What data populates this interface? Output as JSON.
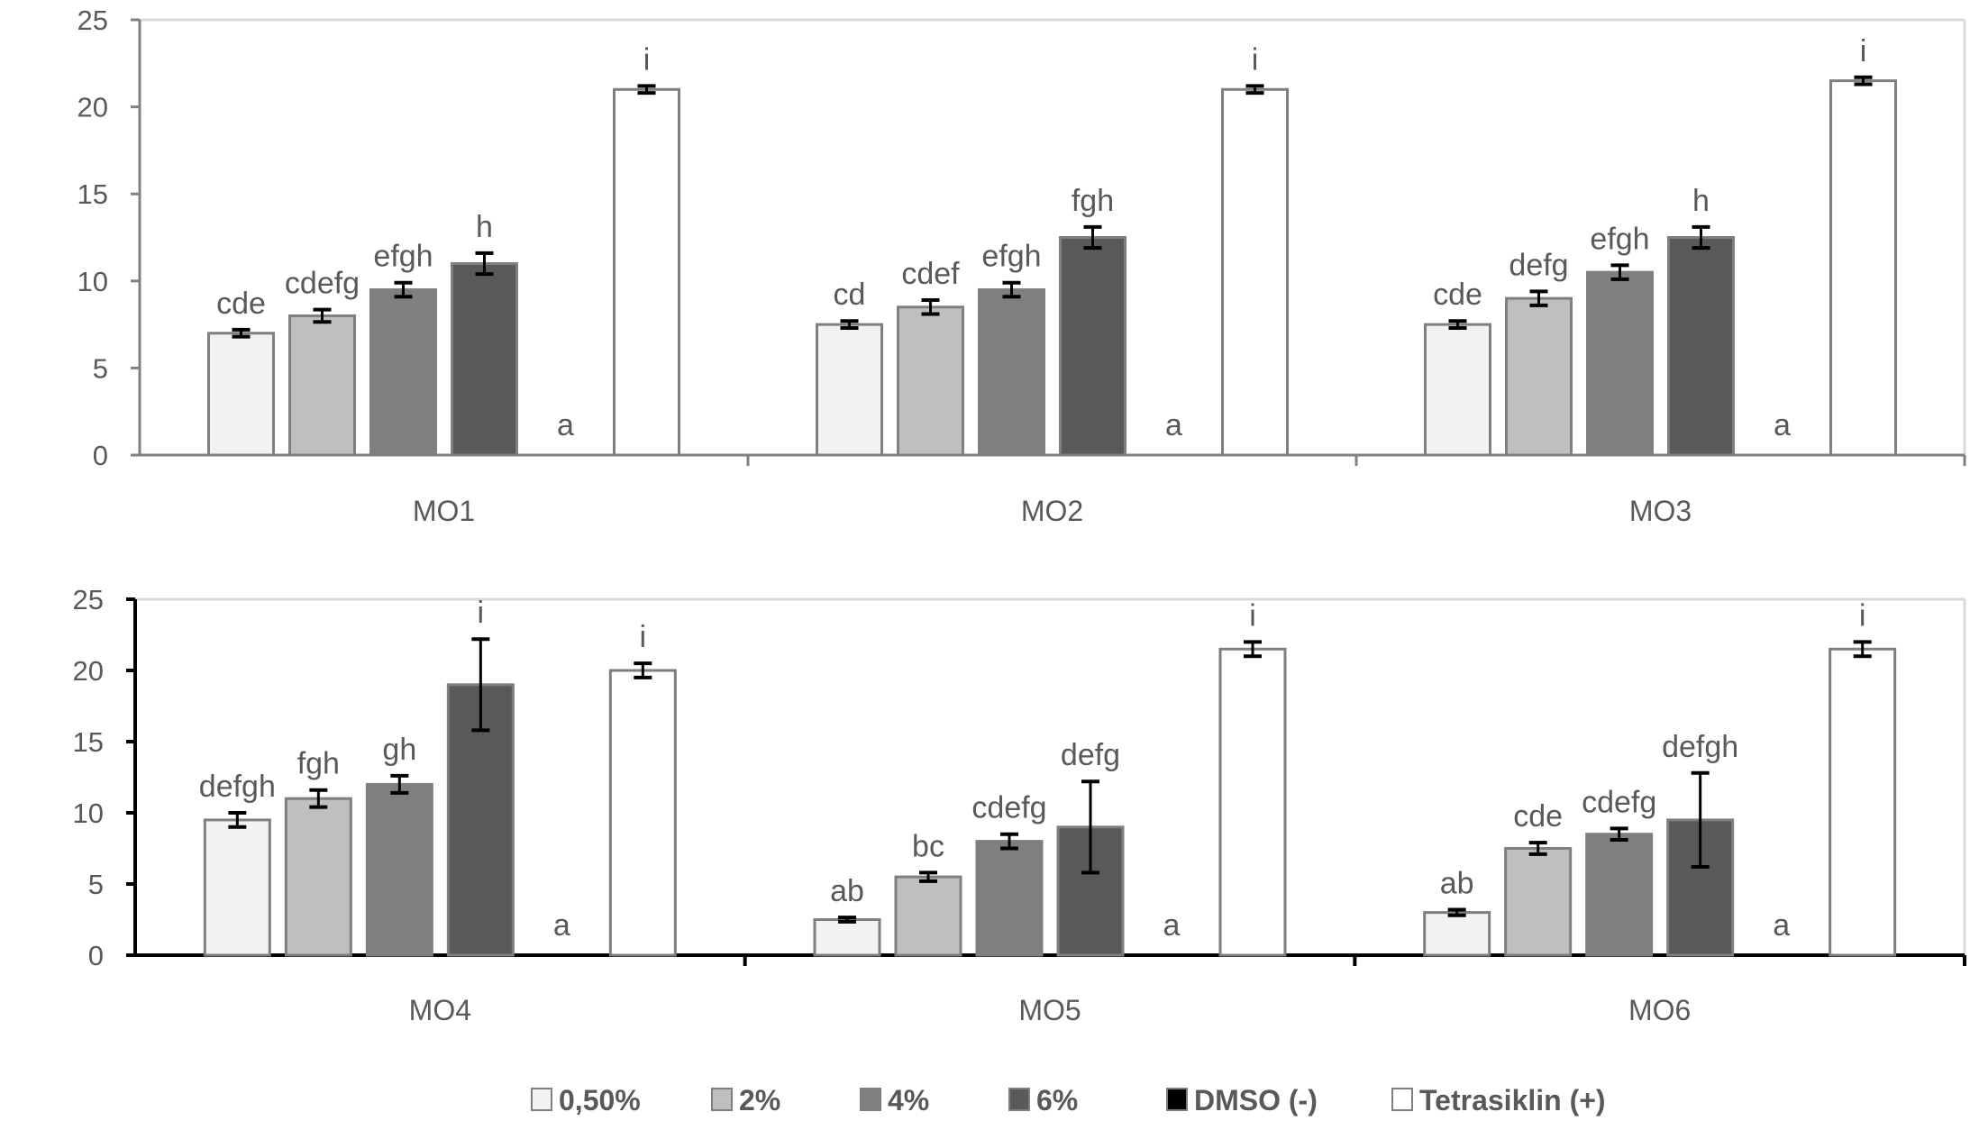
{
  "chart_data": [
    {
      "type": "bar",
      "panel": "top",
      "categories": [
        "MO1",
        "MO2",
        "MO3"
      ],
      "ylim": [
        0,
        25
      ],
      "yticks": [
        "0",
        "5",
        "10",
        "15",
        "20",
        "25"
      ],
      "grid": false,
      "series": [
        {
          "name": "0,50%",
          "values": [
            7,
            7.5,
            7.5
          ],
          "errors": [
            0.2,
            0.2,
            0.2
          ],
          "labels": [
            "cde",
            "cd",
            "cde"
          ]
        },
        {
          "name": "2%",
          "values": [
            8,
            8.5,
            9
          ],
          "errors": [
            0.35,
            0.4,
            0.4
          ],
          "labels": [
            "cdefg",
            "cdef",
            "defg"
          ]
        },
        {
          "name": "4%",
          "values": [
            9.5,
            9.5,
            10.5
          ],
          "errors": [
            0.4,
            0.4,
            0.4
          ],
          "labels": [
            "efgh",
            "efgh",
            "efgh"
          ]
        },
        {
          "name": "6%",
          "values": [
            11,
            12.5,
            12.5
          ],
          "errors": [
            0.6,
            0.6,
            0.6
          ],
          "labels": [
            "h",
            "fgh",
            "h"
          ]
        },
        {
          "name": "DMSO (-)",
          "values": [
            0,
            0,
            0
          ],
          "errors": [
            0,
            0,
            0
          ],
          "labels": [
            "a",
            "a",
            "a"
          ]
        },
        {
          "name": "Tetrasiklin (+)",
          "values": [
            21,
            21,
            21.5
          ],
          "errors": [
            0.2,
            0.2,
            0.2
          ],
          "labels": [
            "i",
            "i",
            "i"
          ]
        }
      ]
    },
    {
      "type": "bar",
      "panel": "bottom",
      "categories": [
        "MO4",
        "MO5",
        "MO6"
      ],
      "ylim": [
        0,
        25
      ],
      "yticks": [
        "0",
        "5",
        "10",
        "15",
        "20",
        "25"
      ],
      "grid": false,
      "series": [
        {
          "name": "0,50%",
          "values": [
            9.5,
            2.5,
            3
          ],
          "errors": [
            0.5,
            0.15,
            0.2
          ],
          "labels": [
            "defgh",
            "ab",
            "ab"
          ]
        },
        {
          "name": "2%",
          "values": [
            11,
            5.5,
            7.5
          ],
          "errors": [
            0.6,
            0.3,
            0.4
          ],
          "labels": [
            "fgh",
            "bc",
            "cde"
          ]
        },
        {
          "name": "4%",
          "values": [
            12,
            8,
            8.5
          ],
          "errors": [
            0.6,
            0.5,
            0.4
          ],
          "labels": [
            "gh",
            "cdefg",
            "cdefg"
          ]
        },
        {
          "name": "6%",
          "values": [
            19,
            9,
            9.5
          ],
          "errors": [
            3.2,
            3.2,
            3.3
          ],
          "labels": [
            "i",
            "defg",
            "defgh"
          ]
        },
        {
          "name": "DMSO (-)",
          "values": [
            0,
            0,
            0
          ],
          "errors": [
            0,
            0,
            0
          ],
          "labels": [
            "a",
            "a",
            "a"
          ]
        },
        {
          "name": "Tetrasiklin (+)",
          "values": [
            20,
            21.5,
            21.5
          ],
          "errors": [
            0.5,
            0.5,
            0.5
          ],
          "labels": [
            "i",
            "i",
            "i"
          ]
        }
      ]
    }
  ],
  "legend": {
    "placement": "bottom",
    "items": [
      {
        "label": "0,50%",
        "color": "#f2f2f2"
      },
      {
        "label": "2%",
        "color": "#bfbfbf"
      },
      {
        "label": "4%",
        "color": "#7f7f7f"
      },
      {
        "label": "6%",
        "color": "#595959"
      },
      {
        "label": "DMSO (-)",
        "color": "#000000"
      },
      {
        "label": "Tetrasiklin (+)",
        "color": "#ffffff"
      }
    ]
  },
  "colors": {
    "axis": "#808080",
    "text": "#595959",
    "border": "#7f7f7f",
    "error": "#000000"
  }
}
